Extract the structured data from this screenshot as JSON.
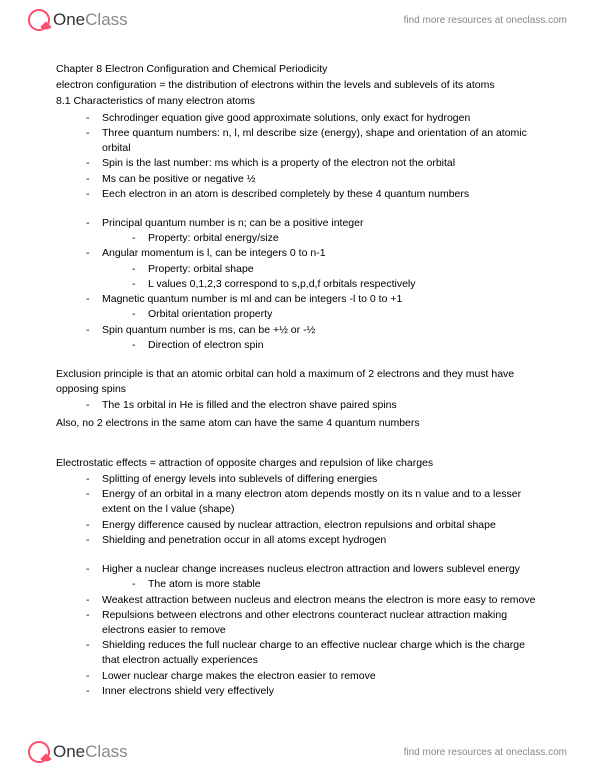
{
  "brand": {
    "one": "One",
    "class": "Class"
  },
  "tagline": "find more resources at oneclass.com",
  "title": "Chapter 8 Electron Configuration and Chemical Periodicity",
  "definition": "electron configuration = the distribution of electrons within the levels and sublevels of its atoms",
  "section81": "8.1 Characteristics of many electron atoms",
  "block1": [
    {
      "t": "Schrodinger equation give good approximate solutions, only exact for hydrogen"
    },
    {
      "t": "Three quantum numbers: n, l, ml describe size (energy), shape and orientation of an atomic orbital"
    },
    {
      "t": "Spin is the last number: ms which is a property of the electron not the orbital"
    },
    {
      "t": "Ms can be positive or negative ½"
    },
    {
      "t": "Eech electron in an atom is described completely by these 4 quantum numbers"
    }
  ],
  "block2": [
    {
      "t": "Principal quantum number is n; can be a positive integer",
      "sub": [
        "Property: orbital energy/size"
      ]
    },
    {
      "t": "Angular momentum is l, can be integers 0 to n-1",
      "sub": [
        "Property: orbital shape",
        "L values 0,1,2,3 correspond to s,p,d,f orbitals respectively"
      ]
    },
    {
      "t": "Magnetic quantum number is ml and can be integers -l to 0 to +1",
      "sub": [
        "Orbital orientation property"
      ]
    },
    {
      "t": "Spin quantum number is ms, can be +½ or -½",
      "sub": [
        "Direction of electron spin"
      ]
    }
  ],
  "exclusion1": "Exclusion principle is that an atomic orbital can hold a maximum of 2 electrons and they must have opposing spins",
  "block3": [
    {
      "t": "The 1s orbital in He is filled and the electron shave paired spins"
    }
  ],
  "exclusion2": "Also, no 2 electrons in the same atom can have the same 4 quantum numbers",
  "electro": "Electrostatic effects = attraction of opposite charges and repulsion of like charges",
  "block4": [
    {
      "t": "Splitting of energy levels into sublevels of differing energies"
    },
    {
      "t": "Energy of an orbital in a many electron atom depends mostly on its n value and to a lesser extent on the l value (shape)"
    },
    {
      "t": "Energy difference caused by nuclear attraction, electron repulsions and orbital shape"
    },
    {
      "t": "Shielding and penetration occur in all atoms except hydrogen"
    }
  ],
  "block5": [
    {
      "t": "Higher a nuclear change increases nucleus electron attraction and lowers sublevel energy",
      "sub": [
        "The atom is more stable"
      ]
    },
    {
      "t": "Weakest attraction between nucleus and electron means the electron is more easy to remove"
    },
    {
      "t": "Repulsions between electrons and other electrons counteract nuclear attraction making electrons easier to remove"
    },
    {
      "t": "Shielding reduces the full nuclear charge to an effective nuclear charge which is the charge that electron actually experiences"
    },
    {
      "t": "Lower nuclear charge makes the electron easier to remove"
    },
    {
      "t": "Inner electrons shield very effectively"
    }
  ]
}
